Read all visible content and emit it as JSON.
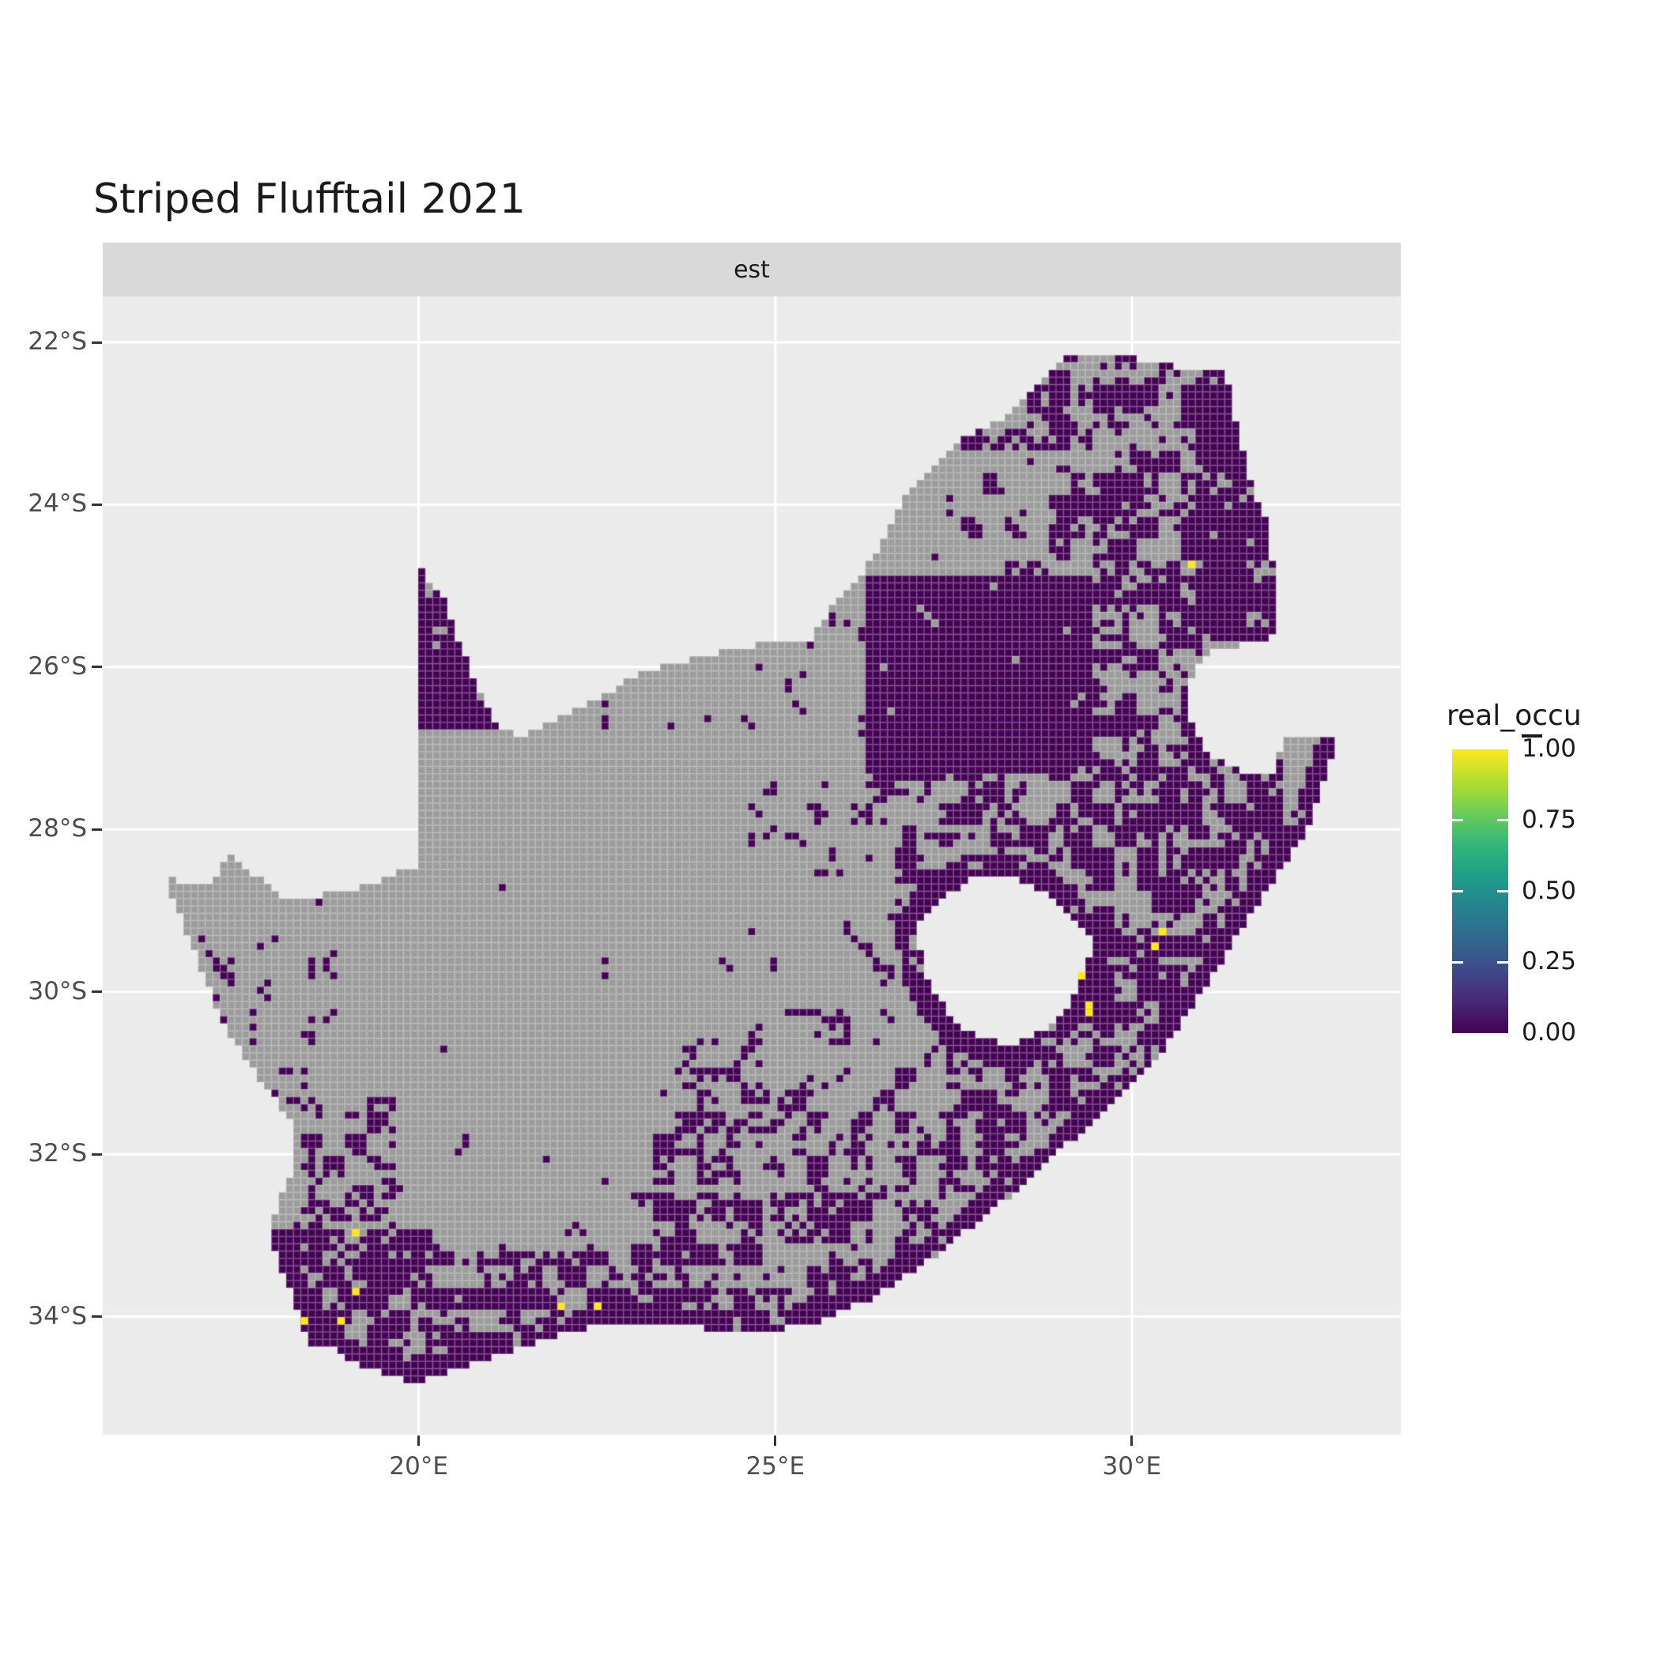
{
  "title": "Striped Flufftail 2021",
  "facet": {
    "label": "est"
  },
  "chart_data": {
    "type": "heatmap",
    "subtype": "geographic-raster-occupancy-map",
    "region": "South Africa",
    "title": "Striped Flufftail 2021",
    "facet_label": "est",
    "grid": true,
    "extent": {
      "lon": [
        15.57,
        33.77
      ],
      "lat": [
        -35.455,
        -21.435
      ]
    },
    "x_axis": {
      "ticks": [
        {
          "value": 20,
          "label": "20°E"
        },
        {
          "value": 25,
          "label": "25°E"
        },
        {
          "value": 30,
          "label": "30°E"
        }
      ]
    },
    "y_axis": {
      "ticks": [
        {
          "value": -22,
          "label": "22°S"
        },
        {
          "value": -24,
          "label": "24°S"
        },
        {
          "value": -26,
          "label": "26°S"
        },
        {
          "value": -28,
          "label": "28°S"
        },
        {
          "value": -30,
          "label": "30°S"
        },
        {
          "value": -32,
          "label": "32°S"
        },
        {
          "value": -34,
          "label": "34°S"
        }
      ]
    },
    "legend": {
      "title": "real_occu",
      "range": [
        0,
        1
      ],
      "ticks": [
        {
          "value": 1.0,
          "label": "1.00"
        },
        {
          "value": 0.75,
          "label": "0.75"
        },
        {
          "value": 0.5,
          "label": "0.50"
        },
        {
          "value": 0.25,
          "label": "0.25"
        },
        {
          "value": 0.0,
          "label": "0.00"
        }
      ],
      "viridis_stops": [
        "#440154",
        "#482878",
        "#3E4A89",
        "#31688E",
        "#26828E",
        "#1F9E89",
        "#35B779",
        "#6DCD59",
        "#B4DE2C",
        "#FDE725"
      ]
    },
    "colors": {
      "panel_bg": "#ebebeb",
      "strip_bg": "#d9d9d9",
      "grid_line": "#ffffff",
      "na_cell": "#9c9c9c",
      "occ_zero": "#440154",
      "occ_one": "#FDE725",
      "cell_border": "rgba(255,255,255,0.22)",
      "axis_text": "#4d4d4d"
    },
    "cell_size_deg": 0.103,
    "outline": [
      [
        16.45,
        -28.6
      ],
      [
        17.05,
        -28.72
      ],
      [
        17.35,
        -28.3
      ],
      [
        17.75,
        -28.6
      ],
      [
        18.1,
        -28.88
      ],
      [
        18.75,
        -28.8
      ],
      [
        19.3,
        -28.7
      ],
      [
        19.98,
        -28.43
      ],
      [
        19.98,
        -24.76
      ],
      [
        20.35,
        -25.15
      ],
      [
        20.6,
        -25.75
      ],
      [
        20.82,
        -26.25
      ],
      [
        21.0,
        -26.6
      ],
      [
        21.4,
        -26.9
      ],
      [
        23.2,
        -26.05
      ],
      [
        24.4,
        -25.77
      ],
      [
        25.5,
        -25.65
      ],
      [
        25.9,
        -25.15
      ],
      [
        26.4,
        -24.65
      ],
      [
        26.9,
        -23.8
      ],
      [
        27.6,
        -23.2
      ],
      [
        28.3,
        -22.9
      ],
      [
        29.05,
        -22.2
      ],
      [
        29.9,
        -22.18
      ],
      [
        30.6,
        -22.3
      ],
      [
        31.3,
        -22.35
      ],
      [
        31.6,
        -23.5
      ],
      [
        31.95,
        -24.4
      ],
      [
        32.02,
        -25.35
      ],
      [
        31.95,
        -25.7
      ],
      [
        31.2,
        -25.75
      ],
      [
        30.85,
        -26.05
      ],
      [
        30.8,
        -26.6
      ],
      [
        31.1,
        -27.1
      ],
      [
        31.6,
        -27.3
      ],
      [
        31.97,
        -27.32
      ],
      [
        32.12,
        -26.86
      ],
      [
        32.89,
        -26.86
      ],
      [
        32.45,
        -28.0
      ],
      [
        31.75,
        -28.95
      ],
      [
        31.05,
        -29.9
      ],
      [
        30.3,
        -30.9
      ],
      [
        29.5,
        -31.55
      ],
      [
        28.5,
        -32.35
      ],
      [
        27.4,
        -33.15
      ],
      [
        26.4,
        -33.75
      ],
      [
        25.65,
        -34.05
      ],
      [
        24.8,
        -34.2
      ],
      [
        23.3,
        -34.1
      ],
      [
        22.2,
        -34.15
      ],
      [
        21.2,
        -34.45
      ],
      [
        20.0,
        -34.82
      ],
      [
        19.2,
        -34.62
      ],
      [
        18.8,
        -34.4
      ],
      [
        18.45,
        -34.35
      ],
      [
        18.3,
        -33.9
      ],
      [
        17.9,
        -33.0
      ],
      [
        18.25,
        -32.1
      ],
      [
        18.2,
        -31.6
      ],
      [
        17.25,
        -30.4
      ],
      [
        16.9,
        -29.6
      ]
    ],
    "coast_segment_range": [
      37,
      54
    ],
    "lesotho_hole": [
      [
        27.0,
        -29.2
      ],
      [
        27.35,
        -28.85
      ],
      [
        27.75,
        -28.6
      ],
      [
        28.3,
        -28.6
      ],
      [
        28.75,
        -28.75
      ],
      [
        29.15,
        -29.05
      ],
      [
        29.45,
        -29.35
      ],
      [
        29.35,
        -29.75
      ],
      [
        29.15,
        -30.1
      ],
      [
        28.9,
        -30.4
      ],
      [
        28.4,
        -30.65
      ],
      [
        28.0,
        -30.6
      ],
      [
        27.55,
        -30.4
      ],
      [
        27.25,
        -30.05
      ],
      [
        27.05,
        -29.65
      ]
    ],
    "base_density": 0.06,
    "density_zones": [
      [
        19.5,
        26.5,
        -30.5,
        -27.2,
        0.035
      ],
      [
        20.3,
        24.0,
        -32.3,
        -30.5,
        0.05
      ],
      [
        16.8,
        18.9,
        -32.6,
        -29.3,
        0.2
      ],
      [
        18.2,
        19.7,
        -33.4,
        -31.3,
        0.4
      ],
      [
        21.2,
        26.3,
        -26.9,
        -25.3,
        0.13
      ],
      [
        24.6,
        27.4,
        -29.9,
        -27.4,
        0.22
      ],
      [
        22.5,
        26.6,
        -30.7,
        -29.5,
        0.13
      ],
      [
        23.3,
        27.2,
        -32.4,
        -30.6,
        0.42
      ],
      [
        24.6,
        29.6,
        -32.6,
        -30.2,
        0.35
      ],
      [
        26.3,
        29.4,
        -28.65,
        -27.25,
        0.5
      ],
      [
        17.9,
        20.3,
        -34.9,
        -32.9,
        0.68
      ],
      [
        19.8,
        24.3,
        -34.7,
        -33.15,
        0.55
      ],
      [
        23.0,
        27.4,
        -34.4,
        -32.5,
        0.48
      ],
      [
        27.4,
        30.3,
        -32.5,
        -30.4,
        0.55
      ],
      [
        29.3,
        32.1,
        -31.3,
        -26.9,
        0.58
      ],
      [
        29.4,
        31.2,
        -26.9,
        -24.85,
        0.55
      ],
      [
        26.25,
        29.45,
        -27.35,
        -24.85,
        0.92
      ],
      [
        27.1,
        28.9,
        -24.85,
        -23.3,
        0.28
      ],
      [
        28.9,
        31.05,
        -24.85,
        -22.1,
        0.5
      ],
      [
        26.8,
        28.9,
        -23.3,
        -22.1,
        0.45
      ],
      [
        30.9,
        32.1,
        -25.7,
        -22.2,
        0.78
      ],
      [
        19.9,
        21.1,
        -26.75,
        -24.7,
        0.7
      ]
    ],
    "lesotho_ring": {
      "dist_deg": 0.3,
      "density": 0.82
    },
    "coast_band": {
      "dist_deg": 0.25,
      "density": 0.85
    },
    "line_feature": {
      "from": [
        32.1,
        -27.55
      ],
      "to": [
        30.55,
        -29.15
      ],
      "width_deg": 0.05
    },
    "max_occupancy_cells": [
      [
        30.87,
        -24.78
      ],
      [
        30.38,
        -29.28
      ],
      [
        30.28,
        -29.45
      ],
      [
        29.28,
        -29.78
      ],
      [
        29.45,
        -30.16
      ],
      [
        29.45,
        -30.25
      ],
      [
        19.11,
        -33.01
      ],
      [
        19.11,
        -33.67
      ],
      [
        18.37,
        -34.02
      ],
      [
        18.96,
        -34.02
      ],
      [
        22.04,
        -33.86
      ],
      [
        22.54,
        -33.86
      ]
    ]
  }
}
